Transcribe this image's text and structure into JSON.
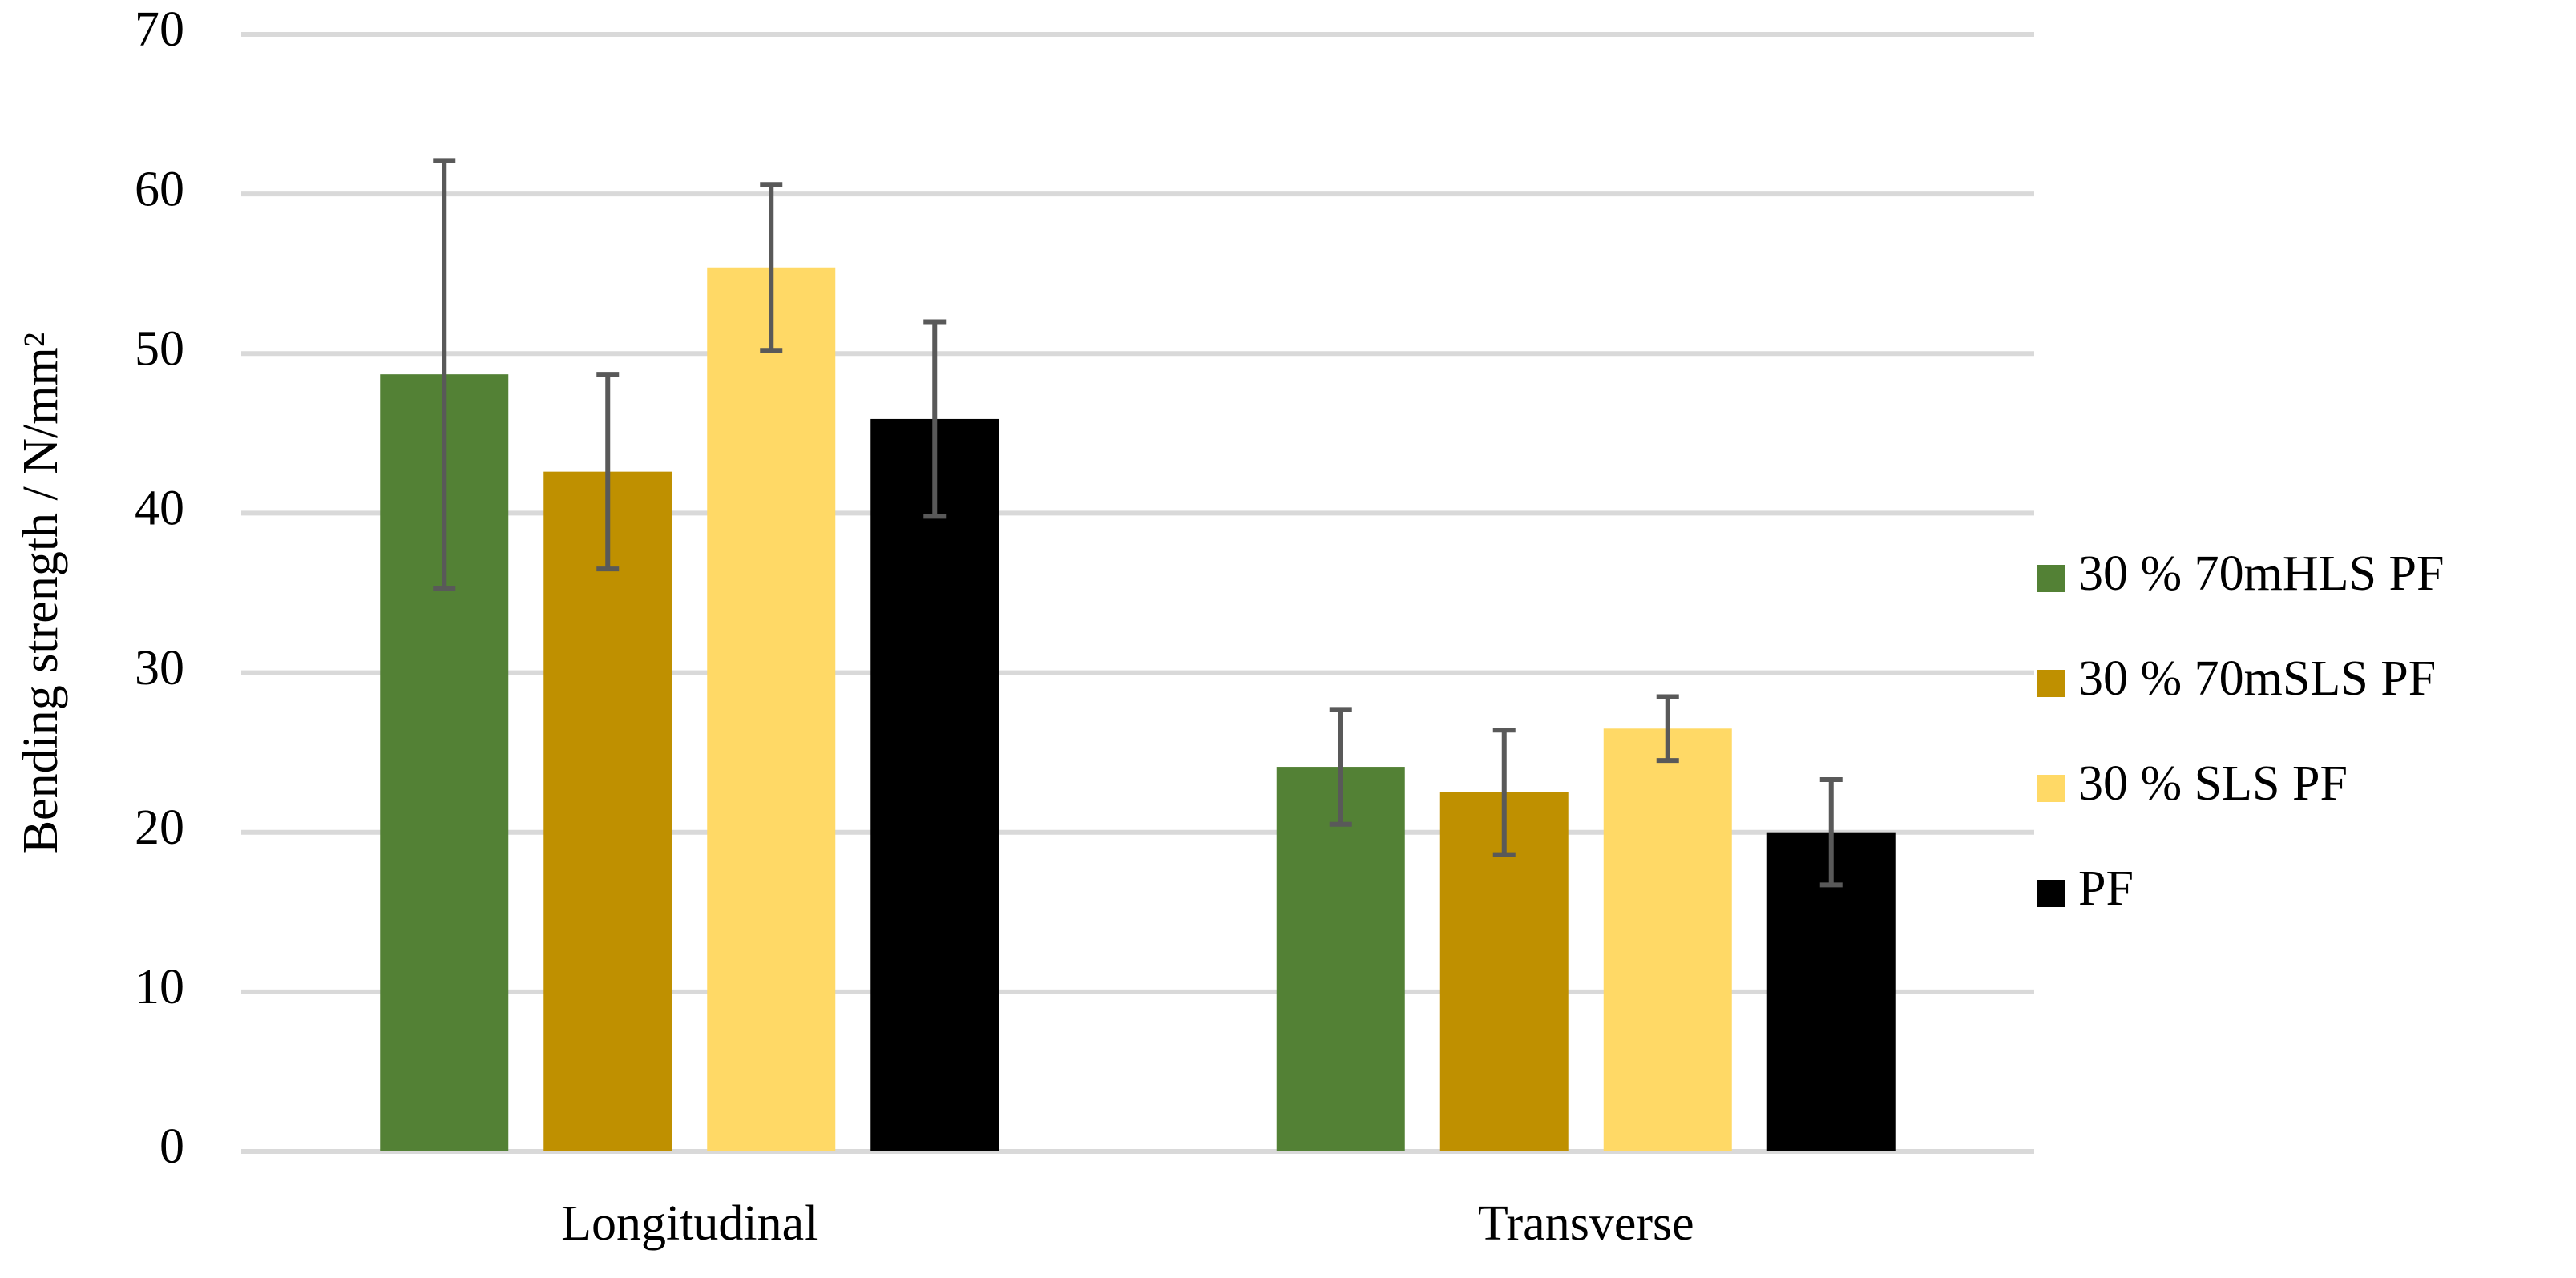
{
  "chart_data": {
    "type": "bar",
    "y_label": "Bending strength / N/mm²",
    "categories": [
      "Longitudinal",
      "Transverse"
    ],
    "series": [
      {
        "name": "30 % 70mHLS PF",
        "color": "#538135",
        "values": [
          48.7,
          24.1
        ],
        "errors": [
          13.4,
          3.6
        ]
      },
      {
        "name": "30 % 70mSLS PF",
        "color": "#bf9000",
        "values": [
          42.6,
          22.5
        ],
        "errors": [
          6.1,
          3.9
        ]
      },
      {
        "name": "30 % SLS PF",
        "color": "#ffd966",
        "values": [
          55.4,
          26.5
        ],
        "errors": [
          5.2,
          2.0
        ]
      },
      {
        "name": "PF",
        "color": "#000000",
        "values": [
          45.9,
          20.0
        ],
        "errors": [
          6.1,
          3.3
        ]
      }
    ],
    "ylim": [
      0,
      70
    ],
    "yticks": [
      0,
      10,
      20,
      30,
      40,
      50,
      60,
      70
    ],
    "grid": true,
    "legend": "right"
  }
}
